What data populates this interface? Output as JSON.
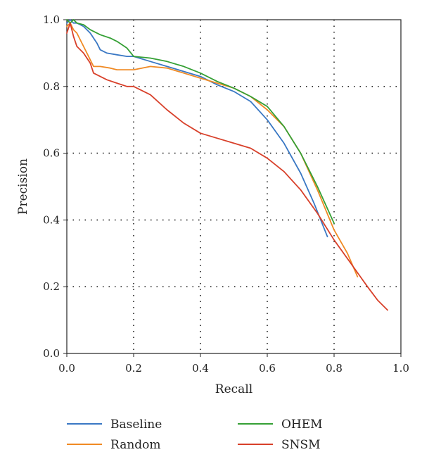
{
  "chart_data": {
    "type": "line",
    "xlabel": "Recall",
    "ylabel": "Precision",
    "xlim": [
      0,
      1
    ],
    "ylim": [
      0,
      1
    ],
    "xticks": [
      0.0,
      0.2,
      0.4,
      0.6,
      0.8,
      1.0
    ],
    "yticks": [
      0.0,
      0.2,
      0.4,
      0.6,
      0.8,
      1.0
    ],
    "xtick_labels": [
      "0.0",
      "0.2",
      "0.4",
      "0.6",
      "0.8",
      "1.0"
    ],
    "ytick_labels": [
      "0.0",
      "0.2",
      "0.4",
      "0.6",
      "0.8",
      "1.0"
    ],
    "grid": "dotted",
    "legend_position": "bottom",
    "series": [
      {
        "name": "Baseline",
        "color": "#3a78c4",
        "x": [
          0.0,
          0.01,
          0.02,
          0.03,
          0.05,
          0.07,
          0.09,
          0.1,
          0.12,
          0.15,
          0.18,
          0.2,
          0.25,
          0.3,
          0.35,
          0.4,
          0.45,
          0.5,
          0.55,
          0.6,
          0.65,
          0.7,
          0.74,
          0.78
        ],
        "y": [
          0.99,
          1.0,
          0.99,
          0.99,
          0.98,
          0.96,
          0.93,
          0.91,
          0.9,
          0.895,
          0.89,
          0.89,
          0.875,
          0.86,
          0.845,
          0.83,
          0.805,
          0.785,
          0.755,
          0.7,
          0.63,
          0.54,
          0.45,
          0.35
        ]
      },
      {
        "name": "Random",
        "color": "#f08a24",
        "x": [
          0.0,
          0.01,
          0.02,
          0.03,
          0.05,
          0.07,
          0.08,
          0.1,
          0.13,
          0.15,
          0.18,
          0.2,
          0.25,
          0.3,
          0.35,
          0.4,
          0.45,
          0.5,
          0.55,
          0.6,
          0.65,
          0.7,
          0.75,
          0.8,
          0.84,
          0.87
        ],
        "y": [
          0.98,
          0.99,
          0.97,
          0.96,
          0.92,
          0.88,
          0.86,
          0.86,
          0.855,
          0.85,
          0.85,
          0.85,
          0.86,
          0.855,
          0.84,
          0.825,
          0.81,
          0.795,
          0.77,
          0.73,
          0.68,
          0.6,
          0.49,
          0.37,
          0.3,
          0.23
        ]
      },
      {
        "name": "OHEM",
        "color": "#35a035",
        "x": [
          0.0,
          0.01,
          0.02,
          0.03,
          0.05,
          0.07,
          0.1,
          0.13,
          0.15,
          0.18,
          0.2,
          0.25,
          0.3,
          0.35,
          0.4,
          0.45,
          0.5,
          0.55,
          0.6,
          0.65,
          0.7,
          0.75,
          0.8
        ],
        "y": [
          1.0,
          0.99,
          1.0,
          0.99,
          0.985,
          0.97,
          0.955,
          0.945,
          0.935,
          0.915,
          0.89,
          0.885,
          0.875,
          0.86,
          0.84,
          0.815,
          0.795,
          0.77,
          0.74,
          0.68,
          0.6,
          0.5,
          0.39
        ]
      },
      {
        "name": "SNSM",
        "color": "#d8402a",
        "x": [
          0.0,
          0.01,
          0.02,
          0.03,
          0.05,
          0.07,
          0.08,
          0.1,
          0.12,
          0.15,
          0.18,
          0.2,
          0.25,
          0.3,
          0.35,
          0.4,
          0.45,
          0.5,
          0.55,
          0.6,
          0.65,
          0.7,
          0.75,
          0.8,
          0.85,
          0.9,
          0.93,
          0.96
        ],
        "y": [
          0.96,
          0.99,
          0.95,
          0.92,
          0.9,
          0.87,
          0.84,
          0.83,
          0.82,
          0.81,
          0.8,
          0.8,
          0.775,
          0.73,
          0.69,
          0.66,
          0.645,
          0.63,
          0.615,
          0.585,
          0.545,
          0.49,
          0.42,
          0.34,
          0.27,
          0.2,
          0.16,
          0.13
        ]
      }
    ]
  }
}
